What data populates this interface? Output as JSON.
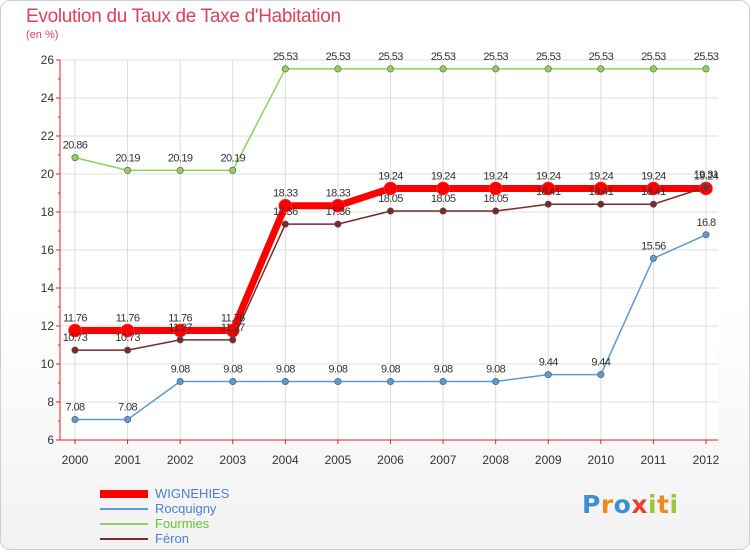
{
  "title": "Evolution du Taux de Taxe d'Habitation",
  "subtitle": "(en %)",
  "logo": {
    "letters": [
      "P",
      "r",
      "o",
      "x",
      "i",
      "t",
      "i"
    ],
    "colors": [
      "#3a8fd6",
      "#f08a1c",
      "#3a8fd6",
      "#e8402a",
      "#9ac63a",
      "#f08a1c",
      "#9ac63a"
    ]
  },
  "chart_data": {
    "type": "line",
    "title": "Evolution du Taux de Taxe d'Habitation",
    "ylabel": "(en %)",
    "xlabel": "",
    "ylim": [
      6,
      26
    ],
    "yticks": [
      "6",
      "8",
      "10",
      "12",
      "14",
      "16",
      "18",
      "20",
      "22",
      "24",
      "26"
    ],
    "categories": [
      "2000",
      "2001",
      "2002",
      "2003",
      "2004",
      "2005",
      "2006",
      "2007",
      "2008",
      "2009",
      "2010",
      "2011",
      "2012"
    ],
    "series": [
      {
        "name": "WIGNEHIES",
        "color": "#ff0000",
        "values": [
          11.76,
          11.76,
          11.76,
          11.76,
          18.33,
          18.33,
          19.24,
          19.24,
          19.24,
          19.24,
          19.24,
          19.24,
          19.24
        ],
        "labels": [
          "11.76",
          "11.76",
          "11.76",
          "11.76",
          "18.33",
          "18.33",
          "19.24",
          "19.24",
          "19.24",
          "19.24",
          "19.24",
          "19.24",
          "19.24"
        ]
      },
      {
        "name": "Rocquigny",
        "color": "#5b9bd5",
        "values": [
          7.08,
          7.08,
          9.08,
          9.08,
          9.08,
          9.08,
          9.08,
          9.08,
          9.08,
          9.44,
          9.44,
          15.56,
          16.8
        ],
        "labels": [
          "7.08",
          "7.08",
          "9.08",
          "9.08",
          "9.08",
          "9.08",
          "9.08",
          "9.08",
          "9.08",
          "9.44",
          "9.44",
          "15.56",
          "16.8"
        ]
      },
      {
        "name": "Fourmies",
        "color": "#8fd15a",
        "values": [
          20.86,
          20.19,
          20.19,
          20.19,
          25.53,
          25.53,
          25.53,
          25.53,
          25.53,
          25.53,
          25.53,
          25.53,
          25.53
        ],
        "labels": [
          "20.86",
          "20.19",
          "20.19",
          "20.19",
          "25.53",
          "25.53",
          "25.53",
          "25.53",
          "25.53",
          "25.53",
          "25.53",
          "25.53",
          "25.53"
        ]
      },
      {
        "name": "Féron",
        "color": "#7a2a2a",
        "values": [
          10.73,
          10.73,
          11.27,
          11.27,
          17.36,
          17.36,
          18.05,
          18.05,
          18.05,
          18.41,
          18.41,
          18.41,
          19.31
        ],
        "labels": [
          "10.73",
          "10.73",
          "11.27",
          "11.27",
          "17.36",
          "17.36",
          "18.05",
          "18.05",
          "18.05",
          "18.41",
          "18.41",
          "18.41",
          "19.31"
        ]
      }
    ]
  }
}
